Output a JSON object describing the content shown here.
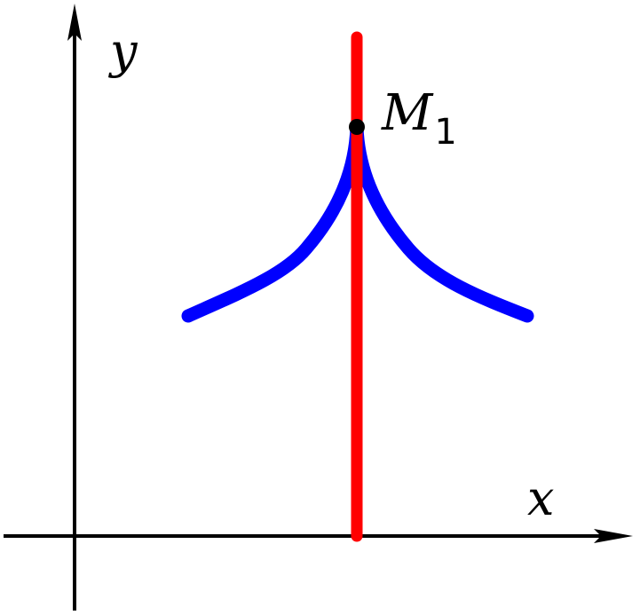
{
  "axes": {
    "x_label": "x",
    "y_label": "y",
    "color": "#000000"
  },
  "point": {
    "label": "M",
    "subscript": "1",
    "color": "#000000"
  },
  "vertical_line": {
    "color": "#ff0000"
  },
  "curve": {
    "color": "#0000ff",
    "shape": "cusp"
  }
}
